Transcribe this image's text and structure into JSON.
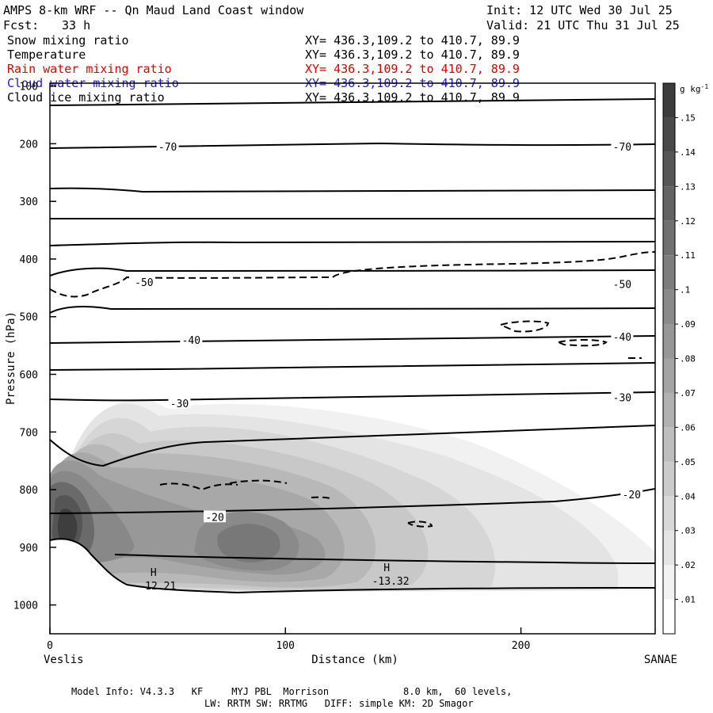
{
  "header": {
    "title": "AMPS 8-km WRF -- Qn Maud Land Coast window",
    "init": "Init: 12 UTC Wed 30 Jul 25",
    "fcst_label": "Fcst:",
    "fcst_value": "33 h",
    "valid": "Valid: 21 UTC Thu 31 Jul 25"
  },
  "fields": [
    {
      "name": "Snow mixing ratio",
      "xy": "XY= 436.3,109.2 to 410.7, 89.9",
      "color": "#000000"
    },
    {
      "name": "Temperature",
      "xy": "XY= 436.3,109.2 to 410.7, 89.9",
      "color": "#000000"
    },
    {
      "name": "Rain water mixing ratio",
      "xy": "XY= 436.3,109.2 to 410.7, 89.9",
      "color": "#e00000"
    },
    {
      "name": "Cloud water mixing ratio",
      "xy": "XY= 436.3,109.2 to 410.7, 89.9",
      "color": "#2020d0"
    },
    {
      "name": "Cloud ice mixing ratio",
      "xy": "XY= 436.3,109.2 to 410.7, 89.9",
      "color": "#000000"
    }
  ],
  "footer": {
    "line1": "Model Info: V4.3.3   KF     MYJ PBL  Morrison             8.0 km,  60 levels,",
    "line2": "LW: RRTM SW: RRTMG   DIFF: simple KM: 2D Smagor"
  },
  "chart_data": {
    "type": "contour",
    "xlabel": "Distance (km)",
    "ylabel": "Pressure (hPa)",
    "xlim": [
      0,
      257
    ],
    "ylim": [
      1050,
      95
    ],
    "x_ticks": [
      0,
      100,
      200
    ],
    "y_ticks": [
      100,
      200,
      300,
      400,
      500,
      600,
      700,
      800,
      900,
      1000
    ],
    "x_endpoint_labels": {
      "left": "Veslis",
      "right": "SANAE"
    },
    "colorbar": {
      "unit": "g kg",
      "unit_exp": "-1",
      "levels": [
        0.01,
        0.02,
        0.03,
        0.04,
        0.05,
        0.06,
        0.07,
        0.08,
        0.09,
        0.1,
        0.11,
        0.12,
        0.13,
        0.14,
        0.15
      ],
      "tick_labels": [
        ".01",
        ".02",
        ".03",
        ".04",
        ".05",
        ".06",
        ".07",
        ".08",
        ".09",
        ".1",
        ".11",
        ".12",
        ".13",
        ".14",
        ".15"
      ]
    },
    "temperature_contours": [
      {
        "label": "-70",
        "label_positions": [
          [
            50,
            205
          ],
          [
            243,
            205
          ]
        ]
      },
      {
        "label": "-50",
        "label_positions": [
          [
            40,
            440
          ],
          [
            243,
            443
          ]
        ]
      },
      {
        "label": "-40",
        "label_positions": [
          [
            60,
            540
          ],
          [
            243,
            535
          ]
        ]
      },
      {
        "label": "-30",
        "label_positions": [
          [
            55,
            650
          ],
          [
            243,
            640
          ]
        ]
      },
      {
        "label": "-20",
        "label_positions": [
          [
            70,
            847
          ],
          [
            247,
            808
          ]
        ]
      }
    ],
    "annotations": [
      {
        "marker": "H",
        "value": "-12.21",
        "x": 44,
        "p": 970
      },
      {
        "marker": "H",
        "value": "-13.32",
        "x": 143,
        "p": 962
      }
    ]
  }
}
